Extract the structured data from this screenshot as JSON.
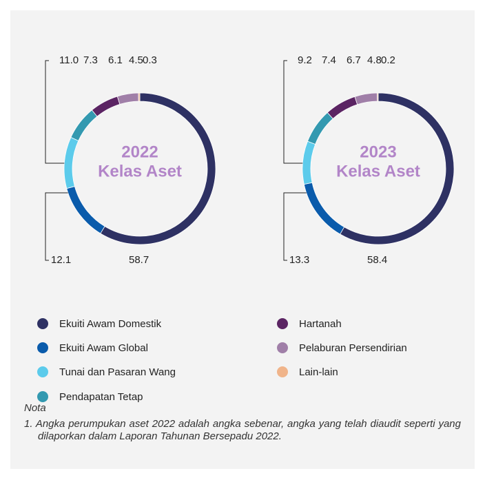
{
  "chart_data": [
    {
      "type": "pie",
      "title": "2022",
      "subtitle": "Kelas Aset",
      "categories": [
        "Ekuiti Awam Domestik",
        "Ekuiti Awam Global",
        "Tunai dan Pasaran Wang",
        "Pendapatan Tetap",
        "Hartanah",
        "Pelaburan Persendirian",
        "Lain-lain"
      ],
      "values": [
        58.7,
        12.1,
        11.0,
        7.3,
        6.1,
        4.5,
        0.3
      ],
      "value_labels": [
        "58.7",
        "12.1",
        "11.0",
        "7.3",
        "6.1",
        "4.5",
        "0.3"
      ],
      "colors": [
        "#2e3163",
        "#0a5bab",
        "#5ccbeb",
        "#3399b0",
        "#5b2463",
        "#a07fa8",
        "#f0b48a"
      ]
    },
    {
      "type": "pie",
      "title": "2023",
      "subtitle": "Kelas Aset",
      "categories": [
        "Ekuiti Awam Domestik",
        "Ekuiti Awam Global",
        "Tunai dan Pasaran Wang",
        "Pendapatan Tetap",
        "Hartanah",
        "Pelaburan Persendirian",
        "Lain-lain"
      ],
      "values": [
        58.4,
        13.3,
        9.2,
        7.4,
        6.7,
        4.8,
        0.2
      ],
      "value_labels": [
        "58.4",
        "13.3",
        "9.2",
        "7.4",
        "6.7",
        "4.8",
        "0.2"
      ],
      "colors": [
        "#2e3163",
        "#0a5bab",
        "#5ccbeb",
        "#3399b0",
        "#5b2463",
        "#a07fa8",
        "#f0b48a"
      ]
    }
  ],
  "note": {
    "title": "Nota",
    "items": [
      "1. Angka perumpukan aset 2022 adalah angka sebenar, angka yang telah diaudit seperti yang dilaporkan dalam Laporan Tahunan Bersepadu 2022."
    ]
  }
}
